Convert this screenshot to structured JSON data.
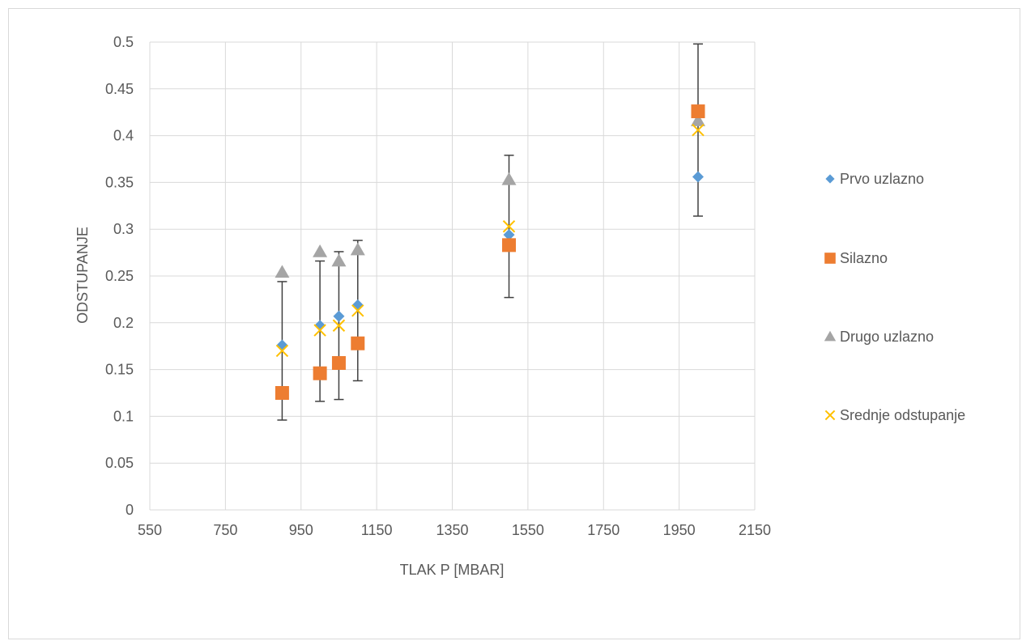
{
  "chart_data": {
    "type": "scatter",
    "title": "",
    "xlabel": "TLAK P [MBAR]",
    "ylabel": "ODSTUPANJE",
    "xlim": [
      550,
      2150
    ],
    "ylim": [
      0,
      0.5
    ],
    "xticks": [
      550,
      750,
      950,
      1150,
      1350,
      1550,
      1750,
      1950,
      2150
    ],
    "yticks": [
      0,
      0.05,
      0.1,
      0.15,
      0.2,
      0.25,
      0.3,
      0.35,
      0.4,
      0.45,
      0.5
    ],
    "grid": true,
    "legend_position": "right",
    "series": [
      {
        "name": "Prvo uzlazno",
        "marker": "diamond",
        "color": "#5b9bd5",
        "x": [
          900,
          1000,
          1050,
          1100,
          1500,
          2000
        ],
        "y": [
          0.176,
          0.197,
          0.207,
          0.219,
          0.294,
          0.356
        ]
      },
      {
        "name": "Silazno",
        "marker": "square",
        "color": "#ed7d31",
        "x": [
          900,
          1000,
          1050,
          1100,
          1500,
          2000
        ],
        "y": [
          0.125,
          0.146,
          0.157,
          0.178,
          0.283,
          0.426
        ]
      },
      {
        "name": "Drugo uzlazno",
        "marker": "triangle",
        "color": "#a5a5a5",
        "x": [
          900,
          1000,
          1050,
          1100,
          1500,
          2000
        ],
        "y": [
          0.254,
          0.276,
          0.266,
          0.278,
          0.353,
          0.416
        ]
      },
      {
        "name": "Srednje odstupanje",
        "marker": "x",
        "color": "#ffc000",
        "x": [
          900,
          1000,
          1050,
          1100,
          1500,
          2000
        ],
        "y": [
          0.17,
          0.192,
          0.197,
          0.213,
          0.303,
          0.406
        ]
      }
    ],
    "error_bars": [
      {
        "x": 900,
        "low": 0.096,
        "high": 0.244
      },
      {
        "x": 1000,
        "low": 0.116,
        "high": 0.266
      },
      {
        "x": 1050,
        "low": 0.118,
        "high": 0.276
      },
      {
        "x": 1100,
        "low": 0.138,
        "high": 0.288
      },
      {
        "x": 1500,
        "low": 0.227,
        "high": 0.379
      },
      {
        "x": 2000,
        "low": 0.314,
        "high": 0.498
      }
    ],
    "error_bar_color": "#404040"
  }
}
